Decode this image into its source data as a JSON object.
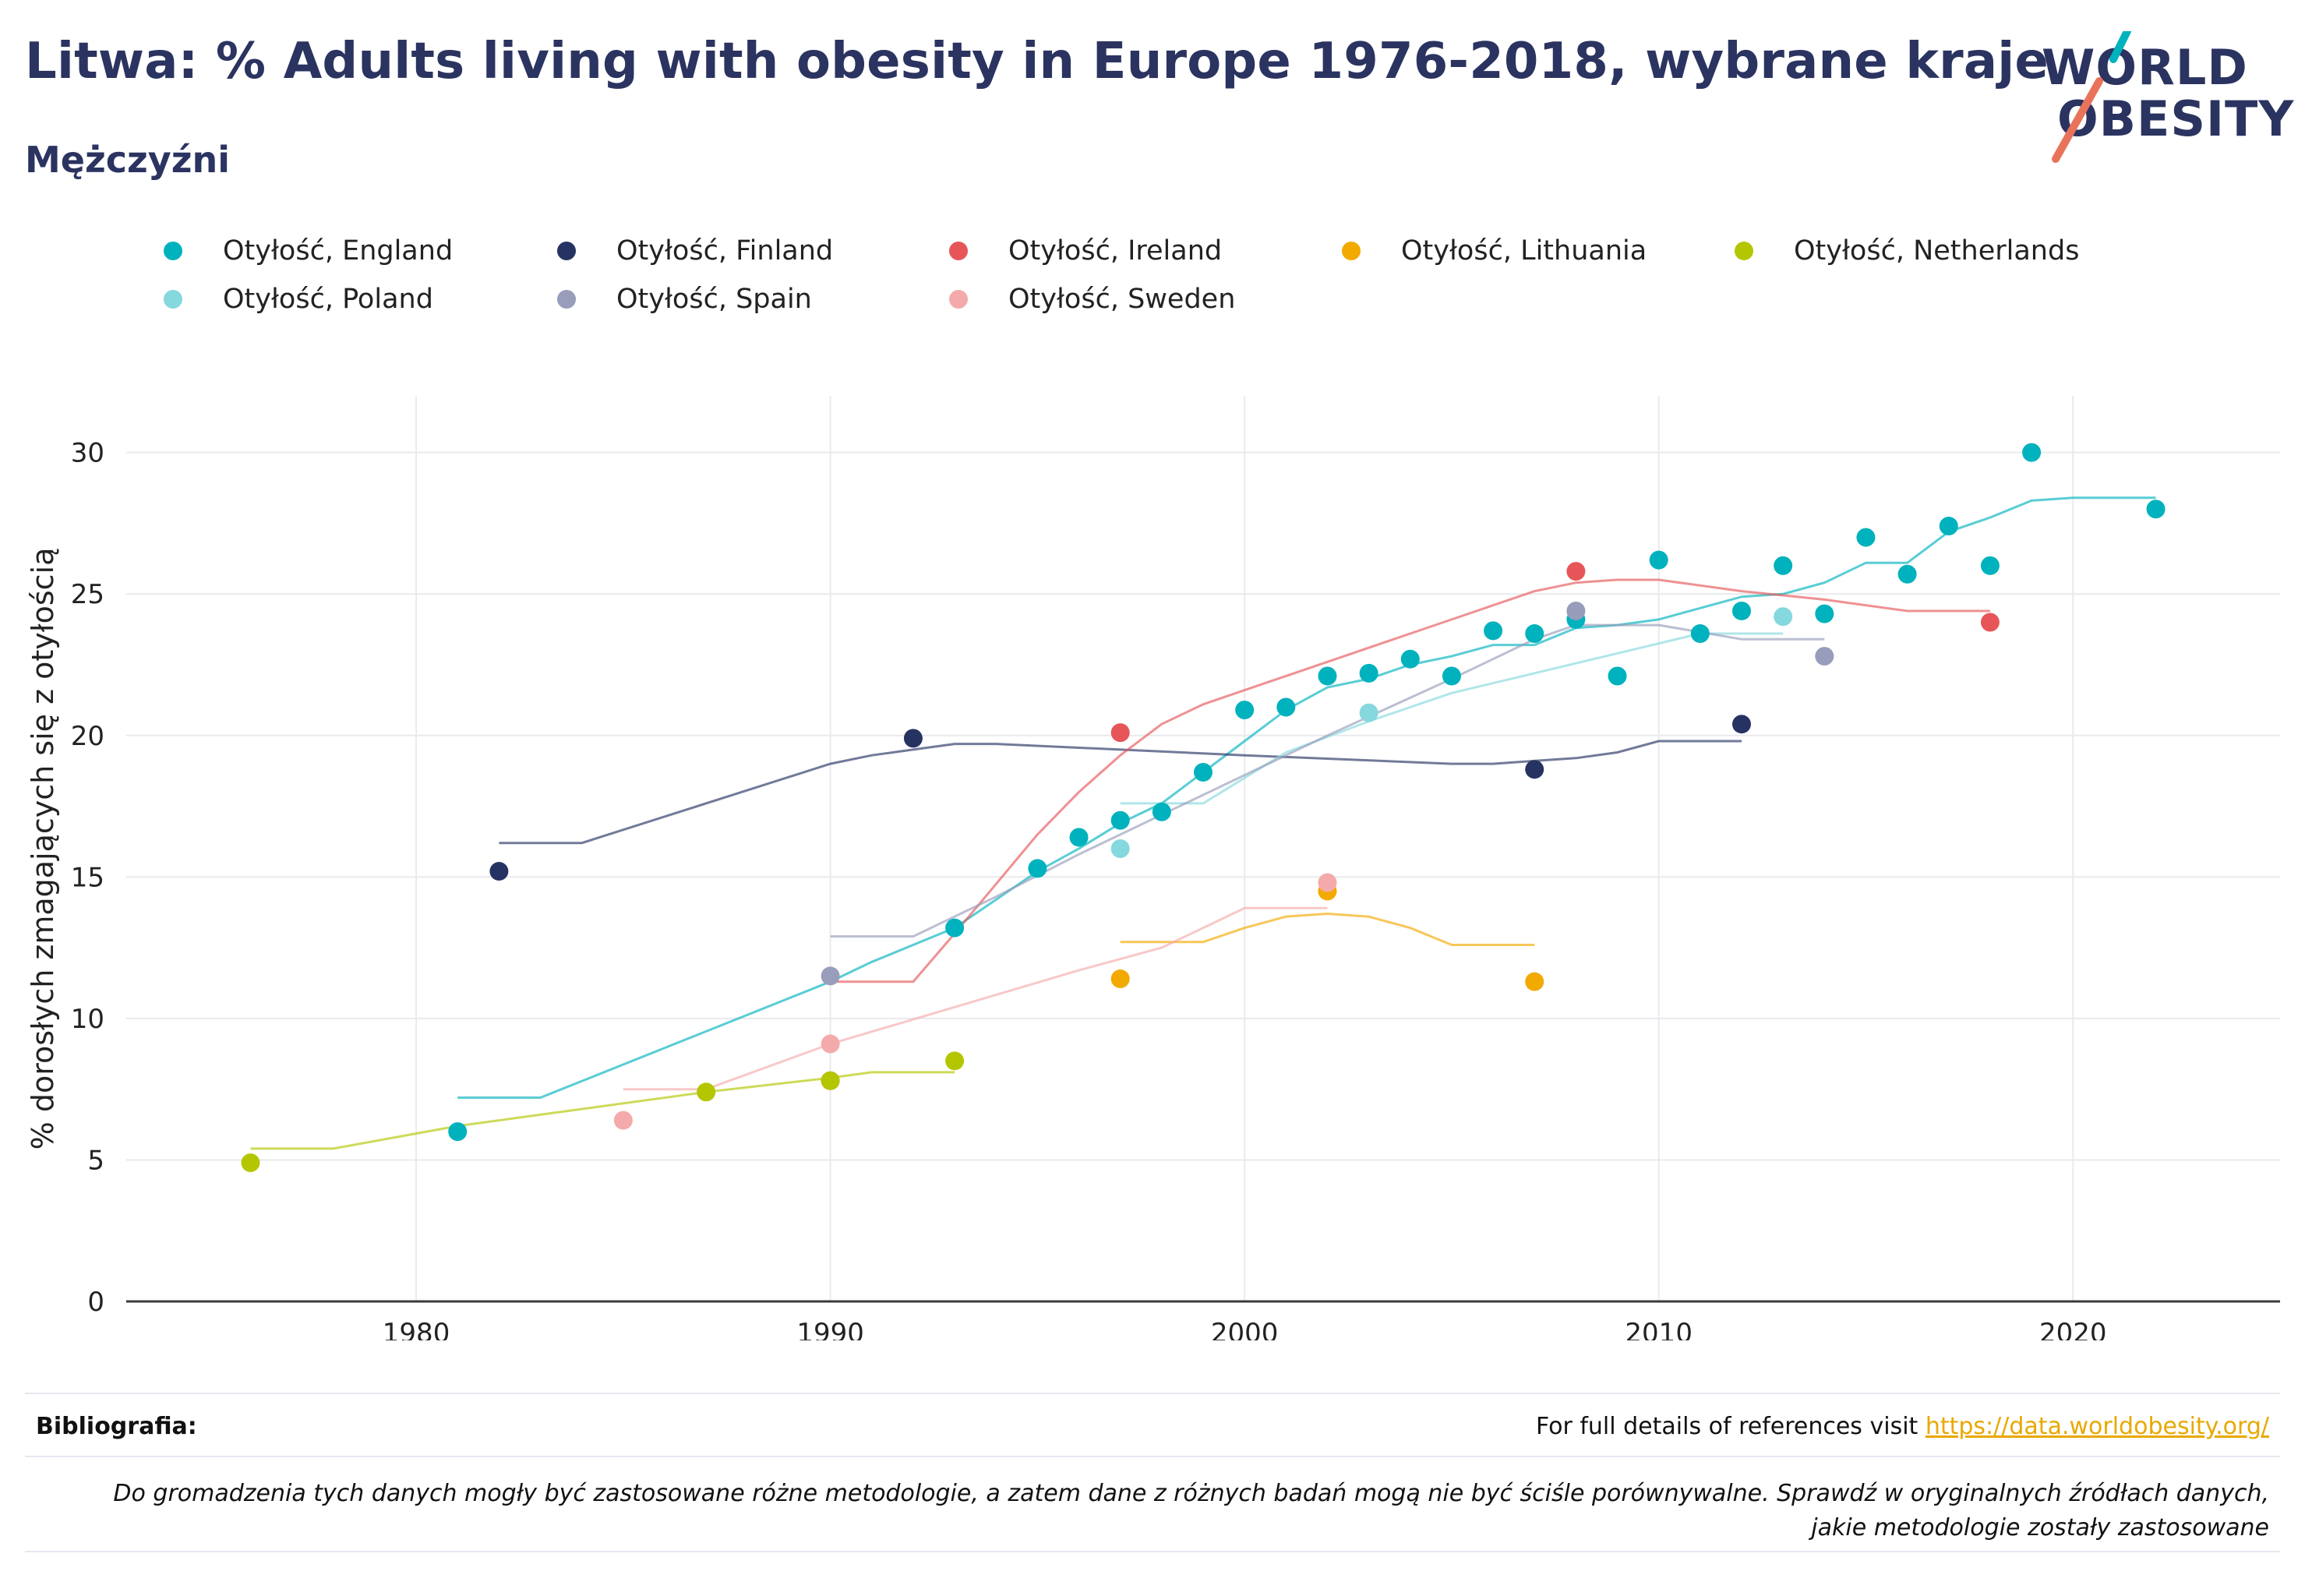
{
  "header": {
    "title": "Litwa: % Adults living with obesity in Europe 1976-2018, wybrane kraje",
    "subtitle": "Mężczyźni",
    "logo_line1": "WORLD",
    "logo_line2": "OBESITY"
  },
  "footer": {
    "references_label": "Bibliografia:",
    "references_text": "For full details of references visit ",
    "references_link": "https://data.worldobesity.org/",
    "note": "Do gromadzenia tych danych mogły być zastosowane różne metodologie, a zatem dane z różnych badań mogą nie być ściśle porównywalne. Sprawdź w oryginalnych źródłach danych, jakie metodologie zostały zastosowane"
  },
  "chart_data": {
    "type": "scatter",
    "ylabel": "% dorosłych zmagających się z otyłością",
    "xlim": [
      1973,
      2025
    ],
    "ylim": [
      0,
      32
    ],
    "xticks": [
      1980,
      1990,
      2000,
      2010,
      2020
    ],
    "yticks": [
      0,
      5,
      10,
      15,
      20,
      25,
      30
    ],
    "grid": true,
    "legend_position": "top",
    "series": [
      {
        "name": "Otyłość, England",
        "color": "#00b2bd",
        "points": [
          [
            1981,
            6.0
          ],
          [
            1993,
            13.2
          ],
          [
            1995,
            15.3
          ],
          [
            1996,
            16.4
          ],
          [
            1997,
            17.0
          ],
          [
            1998,
            17.3
          ],
          [
            1999,
            18.7
          ],
          [
            2000,
            20.9
          ],
          [
            2001,
            21.0
          ],
          [
            2002,
            22.1
          ],
          [
            2003,
            22.2
          ],
          [
            2004,
            22.7
          ],
          [
            2005,
            22.1
          ],
          [
            2006,
            23.7
          ],
          [
            2007,
            23.6
          ],
          [
            2008,
            24.1
          ],
          [
            2009,
            22.1
          ],
          [
            2010,
            26.2
          ],
          [
            2011,
            23.6
          ],
          [
            2012,
            24.4
          ],
          [
            2013,
            26.0
          ],
          [
            2014,
            24.3
          ],
          [
            2015,
            27.0
          ],
          [
            2016,
            25.7
          ],
          [
            2017,
            27.4
          ],
          [
            2018,
            26.0
          ],
          [
            2019,
            30.0
          ],
          [
            2022,
            28.0
          ]
        ],
        "trend": [
          [
            1981,
            7.2
          ],
          [
            1983,
            7.2
          ],
          [
            1990,
            11.3
          ],
          [
            1991,
            12.0
          ],
          [
            1993,
            13.2
          ],
          [
            1995,
            15.2
          ],
          [
            1996,
            16.0
          ],
          [
            1997,
            16.9
          ],
          [
            1998,
            17.6
          ],
          [
            1999,
            18.7
          ],
          [
            2000,
            19.8
          ],
          [
            2001,
            20.9
          ],
          [
            2002,
            21.7
          ],
          [
            2003,
            22.0
          ],
          [
            2004,
            22.5
          ],
          [
            2005,
            22.8
          ],
          [
            2006,
            23.2
          ],
          [
            2007,
            23.2
          ],
          [
            2008,
            23.8
          ],
          [
            2009,
            23.9
          ],
          [
            2010,
            24.1
          ],
          [
            2011,
            24.5
          ],
          [
            2012,
            24.9
          ],
          [
            2013,
            25.0
          ],
          [
            2014,
            25.4
          ],
          [
            2015,
            26.1
          ],
          [
            2016,
            26.1
          ],
          [
            2017,
            27.2
          ],
          [
            2018,
            27.7
          ],
          [
            2019,
            28.3
          ],
          [
            2020,
            28.4
          ],
          [
            2022,
            28.4
          ]
        ]
      },
      {
        "name": "Otyłość, Finland",
        "color": "#263362",
        "points": [
          [
            1982,
            15.2
          ],
          [
            1992,
            19.9
          ],
          [
            2007,
            18.8
          ],
          [
            2012,
            20.4
          ]
        ],
        "trend": [
          [
            1982,
            16.2
          ],
          [
            1984,
            16.2
          ],
          [
            1990,
            19.0
          ],
          [
            1991,
            19.3
          ],
          [
            1992,
            19.5
          ],
          [
            1993,
            19.7
          ],
          [
            1994,
            19.7
          ],
          [
            1997,
            19.5
          ],
          [
            2000,
            19.3
          ],
          [
            2005,
            19.0
          ],
          [
            2006,
            19.0
          ],
          [
            2007,
            19.1
          ],
          [
            2008,
            19.2
          ],
          [
            2009,
            19.4
          ],
          [
            2010,
            19.8
          ],
          [
            2012,
            19.8
          ]
        ]
      },
      {
        "name": "Otyłość, Ireland",
        "color": "#e65659",
        "points": [
          [
            1990,
            7.8
          ],
          [
            1997,
            20.1
          ],
          [
            2008,
            25.8
          ],
          [
            2018,
            24.0
          ]
        ],
        "trend": [
          [
            1990,
            11.3
          ],
          [
            1992,
            11.3
          ],
          [
            1993,
            13.0
          ],
          [
            1995,
            16.5
          ],
          [
            1996,
            18.0
          ],
          [
            1997,
            19.3
          ],
          [
            1998,
            20.4
          ],
          [
            1999,
            21.1
          ],
          [
            2000,
            21.6
          ],
          [
            2002,
            22.6
          ],
          [
            2004,
            23.6
          ],
          [
            2006,
            24.6
          ],
          [
            2007,
            25.1
          ],
          [
            2008,
            25.4
          ],
          [
            2009,
            25.5
          ],
          [
            2010,
            25.5
          ],
          [
            2012,
            25.1
          ],
          [
            2014,
            24.8
          ],
          [
            2016,
            24.4
          ],
          [
            2018,
            24.4
          ]
        ]
      },
      {
        "name": "Otyłość, Lithuania",
        "color": "#f2a900",
        "points": [
          [
            1997,
            11.4
          ],
          [
            2002,
            14.5
          ],
          [
            2007,
            11.3
          ]
        ],
        "trend": [
          [
            1997,
            12.7
          ],
          [
            1999,
            12.7
          ],
          [
            2000,
            13.2
          ],
          [
            2001,
            13.6
          ],
          [
            2002,
            13.7
          ],
          [
            2003,
            13.6
          ],
          [
            2004,
            13.2
          ],
          [
            2005,
            12.6
          ],
          [
            2007,
            12.6
          ]
        ]
      },
      {
        "name": "Otyłość, Netherlands",
        "color": "#b4c600",
        "points": [
          [
            1976,
            4.9
          ],
          [
            1987,
            7.4
          ],
          [
            1990,
            7.8
          ],
          [
            1993,
            8.5
          ]
        ],
        "trend": [
          [
            1976,
            5.4
          ],
          [
            1978,
            5.4
          ],
          [
            1981,
            6.2
          ],
          [
            1987,
            7.4
          ],
          [
            1990,
            7.9
          ],
          [
            1991,
            8.1
          ],
          [
            1993,
            8.1
          ]
        ]
      },
      {
        "name": "Otyłość, Poland",
        "color": "#85d8dd",
        "points": [
          [
            1997,
            16.0
          ],
          [
            2003,
            20.8
          ],
          [
            2013,
            24.2
          ]
        ],
        "trend": [
          [
            1997,
            17.6
          ],
          [
            1999,
            17.6
          ],
          [
            2001,
            19.4
          ],
          [
            2003,
            20.5
          ],
          [
            2005,
            21.5
          ],
          [
            2007,
            22.2
          ],
          [
            2009,
            22.9
          ],
          [
            2011,
            23.6
          ],
          [
            2013,
            23.6
          ]
        ]
      },
      {
        "name": "Otyłość, Spain",
        "color": "#979dba",
        "points": [
          [
            1990,
            11.5
          ],
          [
            2008,
            24.4
          ],
          [
            2014,
            22.8
          ]
        ],
        "trend": [
          [
            1990,
            12.9
          ],
          [
            1992,
            12.9
          ],
          [
            1994,
            14.3
          ],
          [
            1996,
            15.8
          ],
          [
            2000,
            18.6
          ],
          [
            2002,
            20.0
          ],
          [
            2005,
            22.0
          ],
          [
            2007,
            23.4
          ],
          [
            2008,
            23.9
          ],
          [
            2010,
            23.9
          ],
          [
            2012,
            23.4
          ],
          [
            2014,
            23.4
          ]
        ]
      },
      {
        "name": "Otyłość, Sweden",
        "color": "#f4aaaa",
        "points": [
          [
            1985,
            6.4
          ],
          [
            1990,
            9.1
          ],
          [
            2002,
            14.8
          ]
        ],
        "trend": [
          [
            1985,
            7.5
          ],
          [
            1987,
            7.5
          ],
          [
            1990,
            9.1
          ],
          [
            1993,
            10.4
          ],
          [
            1996,
            11.7
          ],
          [
            1998,
            12.5
          ],
          [
            2000,
            13.9
          ],
          [
            2002,
            13.9
          ]
        ]
      }
    ]
  }
}
